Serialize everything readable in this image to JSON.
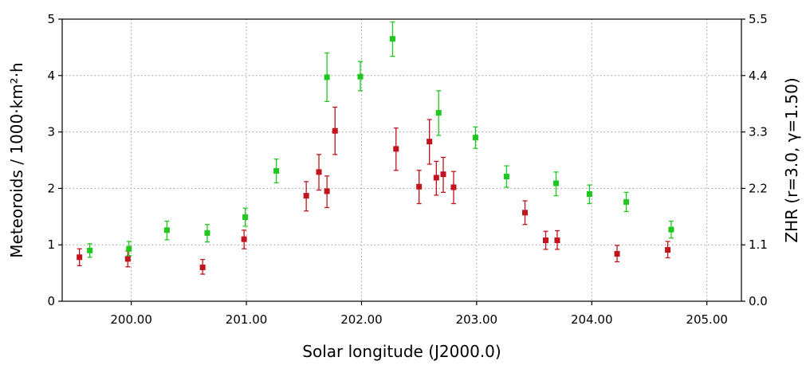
{
  "chart_data": {
    "type": "scatter",
    "xlabel": "Solar longitude (J2000.0)",
    "ylabel": "Meteoroids / 1000·km²·h",
    "y2label": "ZHR (r=3.0, γ=1.50)",
    "xlim": [
      199.4,
      205.3
    ],
    "ylim": [
      0,
      5
    ],
    "y2lim": [
      0,
      5.5
    ],
    "xticks": [
      "200.00",
      "201.00",
      "202.00",
      "203.00",
      "204.00",
      "205.00"
    ],
    "yticks": [
      "0",
      "1",
      "2",
      "3",
      "4",
      "5"
    ],
    "y2ticks": [
      "0.0",
      "1.1",
      "2.2",
      "3.3",
      "4.4",
      "5.5"
    ],
    "grid": true,
    "series": [
      {
        "color": "#c0141e",
        "points": [
          {
            "x": 199.55,
            "y": 0.78,
            "lo": 0.63,
            "hi": 0.93
          },
          {
            "x": 199.97,
            "y": 0.75,
            "lo": 0.61,
            "hi": 0.89
          },
          {
            "x": 200.62,
            "y": 0.6,
            "lo": 0.48,
            "hi": 0.74
          },
          {
            "x": 200.98,
            "y": 1.1,
            "lo": 0.93,
            "hi": 1.26
          },
          {
            "x": 201.52,
            "y": 1.87,
            "lo": 1.6,
            "hi": 2.12
          },
          {
            "x": 201.63,
            "y": 2.29,
            "lo": 1.97,
            "hi": 2.6
          },
          {
            "x": 201.7,
            "y": 1.95,
            "lo": 1.66,
            "hi": 2.22
          },
          {
            "x": 201.77,
            "y": 3.02,
            "lo": 2.6,
            "hi": 3.44
          },
          {
            "x": 202.3,
            "y": 2.7,
            "lo": 2.32,
            "hi": 3.07
          },
          {
            "x": 202.5,
            "y": 2.03,
            "lo": 1.73,
            "hi": 2.32
          },
          {
            "x": 202.59,
            "y": 2.83,
            "lo": 2.43,
            "hi": 3.22
          },
          {
            "x": 202.65,
            "y": 2.19,
            "lo": 1.88,
            "hi": 2.48
          },
          {
            "x": 202.71,
            "y": 2.25,
            "lo": 1.93,
            "hi": 2.55
          },
          {
            "x": 202.8,
            "y": 2.02,
            "lo": 1.73,
            "hi": 2.3
          },
          {
            "x": 203.42,
            "y": 1.57,
            "lo": 1.36,
            "hi": 1.78
          },
          {
            "x": 203.6,
            "y": 1.08,
            "lo": 0.92,
            "hi": 1.24
          },
          {
            "x": 203.7,
            "y": 1.08,
            "lo": 0.92,
            "hi": 1.25
          },
          {
            "x": 204.22,
            "y": 0.84,
            "lo": 0.7,
            "hi": 0.99
          },
          {
            "x": 204.66,
            "y": 0.91,
            "lo": 0.77,
            "hi": 1.06
          }
        ]
      },
      {
        "color": "#1ec81e",
        "points": [
          {
            "x": 199.64,
            "y": 0.9,
            "lo": 0.78,
            "hi": 1.02
          },
          {
            "x": 199.98,
            "y": 0.93,
            "lo": 0.81,
            "hi": 1.06
          },
          {
            "x": 200.31,
            "y": 1.26,
            "lo": 1.09,
            "hi": 1.42
          },
          {
            "x": 200.66,
            "y": 1.21,
            "lo": 1.05,
            "hi": 1.36
          },
          {
            "x": 200.99,
            "y": 1.49,
            "lo": 1.33,
            "hi": 1.65
          },
          {
            "x": 201.26,
            "y": 2.31,
            "lo": 2.1,
            "hi": 2.52
          },
          {
            "x": 201.7,
            "y": 3.97,
            "lo": 3.54,
            "hi": 4.4
          },
          {
            "x": 201.99,
            "y": 3.98,
            "lo": 3.73,
            "hi": 4.25
          },
          {
            "x": 202.27,
            "y": 4.65,
            "lo": 4.34,
            "hi": 4.95
          },
          {
            "x": 202.67,
            "y": 3.34,
            "lo": 2.94,
            "hi": 3.73
          },
          {
            "x": 202.99,
            "y": 2.9,
            "lo": 2.71,
            "hi": 3.09
          },
          {
            "x": 203.26,
            "y": 2.21,
            "lo": 2.02,
            "hi": 2.4
          },
          {
            "x": 203.69,
            "y": 2.09,
            "lo": 1.87,
            "hi": 2.29
          },
          {
            "x": 203.98,
            "y": 1.9,
            "lo": 1.73,
            "hi": 2.06
          },
          {
            "x": 204.3,
            "y": 1.76,
            "lo": 1.59,
            "hi": 1.93
          },
          {
            "x": 204.69,
            "y": 1.27,
            "lo": 1.12,
            "hi": 1.42
          }
        ]
      }
    ]
  }
}
